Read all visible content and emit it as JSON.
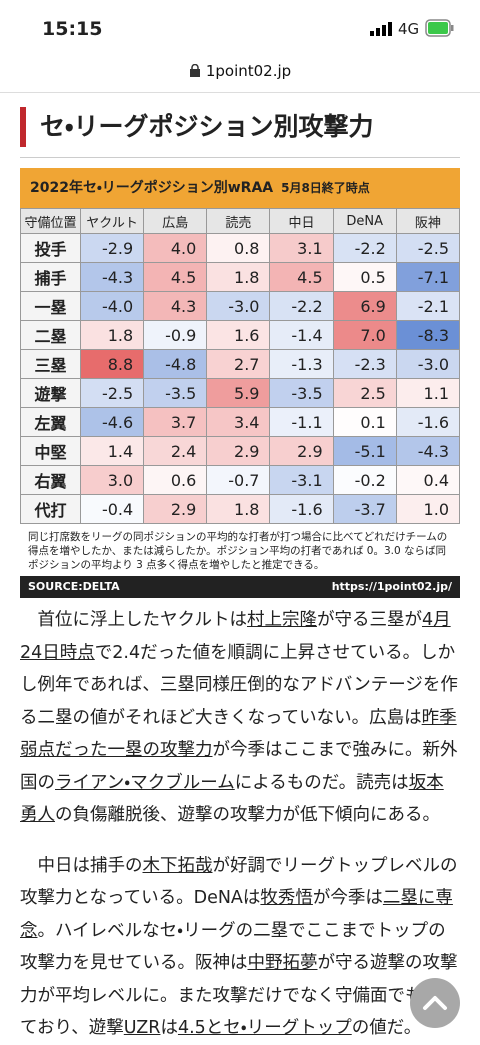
{
  "status_bar": {
    "time": "15:15",
    "network": "4G"
  },
  "url_bar": {
    "url": "1point02.jp"
  },
  "heading": "セ・リーグポジション別攻撃力",
  "table": {
    "title": "2022年セ・リーグポジション別wRAA",
    "date": "5月8日終了時点",
    "header": [
      "守備位置",
      "ヤクルト",
      "広島",
      "読売",
      "中日",
      "DeNA",
      "阪神"
    ],
    "rows": [
      [
        "投手",
        "-2.9",
        "4.0",
        "0.8",
        "3.1",
        "-2.2",
        "-2.5"
      ],
      [
        "捕手",
        "-4.3",
        "4.5",
        "1.8",
        "4.5",
        "0.5",
        "-7.1"
      ],
      [
        "一塁",
        "-4.0",
        "4.3",
        "-3.0",
        "-2.2",
        "6.9",
        "-2.1"
      ],
      [
        "二塁",
        "1.8",
        "-0.9",
        "1.6",
        "-1.4",
        "7.0",
        "-8.3"
      ],
      [
        "三塁",
        "8.8",
        "-4.8",
        "2.7",
        "-1.3",
        "-2.3",
        "-3.0"
      ],
      [
        "遊撃",
        "-2.5",
        "-3.5",
        "5.9",
        "-3.5",
        "2.5",
        "1.1"
      ],
      [
        "左翼",
        "-4.6",
        "3.7",
        "3.4",
        "-1.1",
        "0.1",
        "-1.6"
      ],
      [
        "中堅",
        "1.4",
        "2.4",
        "2.9",
        "2.9",
        "-5.1",
        "-4.3"
      ],
      [
        "右翼",
        "3.0",
        "0.6",
        "-0.7",
        "-3.1",
        "-0.2",
        "0.4"
      ],
      [
        "代打",
        "-0.4",
        "2.9",
        "1.8",
        "-1.6",
        "-3.7",
        "1.0"
      ]
    ],
    "note": "同じ打席数をリーグの同ポジションの平均的な打者が打つ場合に比べてどれだけチームの得点を増やしたか、または減らしたか。ポジション平均の打者であれば 0。3.0 ならば同ポジションの平均より 3 点多く得点を増やしたと推定できる。",
    "source": "SOURCE:DELTA",
    "source_url": "https://1point02.jp/"
  },
  "paragraphs": [
    [
      {
        "text": "首位に浮上したヤクルトは"
      },
      {
        "text": "村上宗隆",
        "link": true
      },
      {
        "text": "が守る三塁が"
      },
      {
        "text": "4月24日時点",
        "link": true
      },
      {
        "text": "で2.4だった値を順調に上昇させている。しかし例年であれば、三塁同様圧倒的なアドバンテージを作る二塁の値がそれほど大きくなっていない。広島は"
      },
      {
        "text": "昨季弱点だった一塁の攻撃力",
        "link": true
      },
      {
        "text": "が今季はここまで強みに。新外国の"
      },
      {
        "text": "ライアン・マクブルーム",
        "link": true
      },
      {
        "text": "によるものだ。読売は"
      },
      {
        "text": "坂本勇人",
        "link": true
      },
      {
        "text": "の負傷離脱後、遊撃の攻撃力が低下傾向にある。"
      }
    ],
    [
      {
        "text": "中日は捕手の"
      },
      {
        "text": "木下拓哉",
        "link": true
      },
      {
        "text": "が好調でリーグトップレベルの攻撃力となっている。DeNAは"
      },
      {
        "text": "牧秀悟",
        "link": true
      },
      {
        "text": "が今季は"
      },
      {
        "text": "二塁に専念",
        "link": true
      },
      {
        "text": "。ハイレベルなセ・リーグの二塁でここまでトップの攻撃力を見せている。阪神は"
      },
      {
        "text": "中野拓夢",
        "link": true
      },
      {
        "text": "が守る遊撃の攻撃力が平均レベルに。また攻撃だけでなく守備面でも優れており、遊撃"
      },
      {
        "text": "UZR",
        "link": true
      },
      {
        "text": "は"
      },
      {
        "text": "4.5とセ・リーグトップ",
        "link": true
      },
      {
        "text": "の値だ。"
      }
    ]
  ]
}
